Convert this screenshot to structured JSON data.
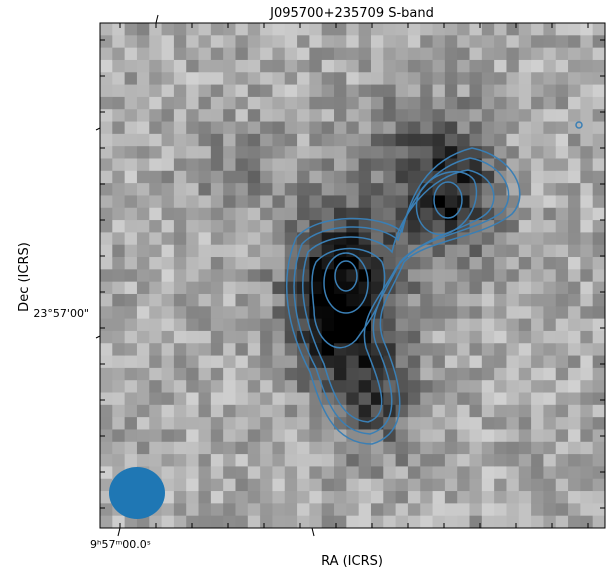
{
  "chart_data": {
    "type": "image",
    "title": "J095700+235709 S-band",
    "xlabel": "RA (ICRS)",
    "ylabel": "Dec (ICRS)",
    "xtick_labels": [
      "9ʰ57ᵐ00.0ˢ"
    ],
    "ytick_labels": [
      "23°57'00\""
    ],
    "contour_color": "#3a7fb5",
    "beam_color": "#1f77b4"
  }
}
